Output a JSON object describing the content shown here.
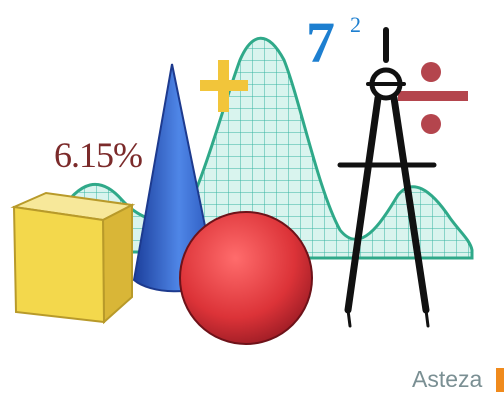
{
  "percent_label": "6.15%",
  "base_label": "7",
  "exponent_label": "2",
  "brand_text": "Asteza",
  "icons": [
    "cube-shape",
    "cone-shape",
    "sphere-shape",
    "compass-icon",
    "plus-icon",
    "divide-icon",
    "bell-curve-grid"
  ],
  "colors": {
    "cube": "#f3d84c",
    "cone": "#3f73d8",
    "sphere": "#d93a3e",
    "curve": "#40b98a",
    "plus": "#f2c53a",
    "divide": "#b4454d",
    "seven": "#1d7fd0",
    "brand": "#7a8f93"
  }
}
